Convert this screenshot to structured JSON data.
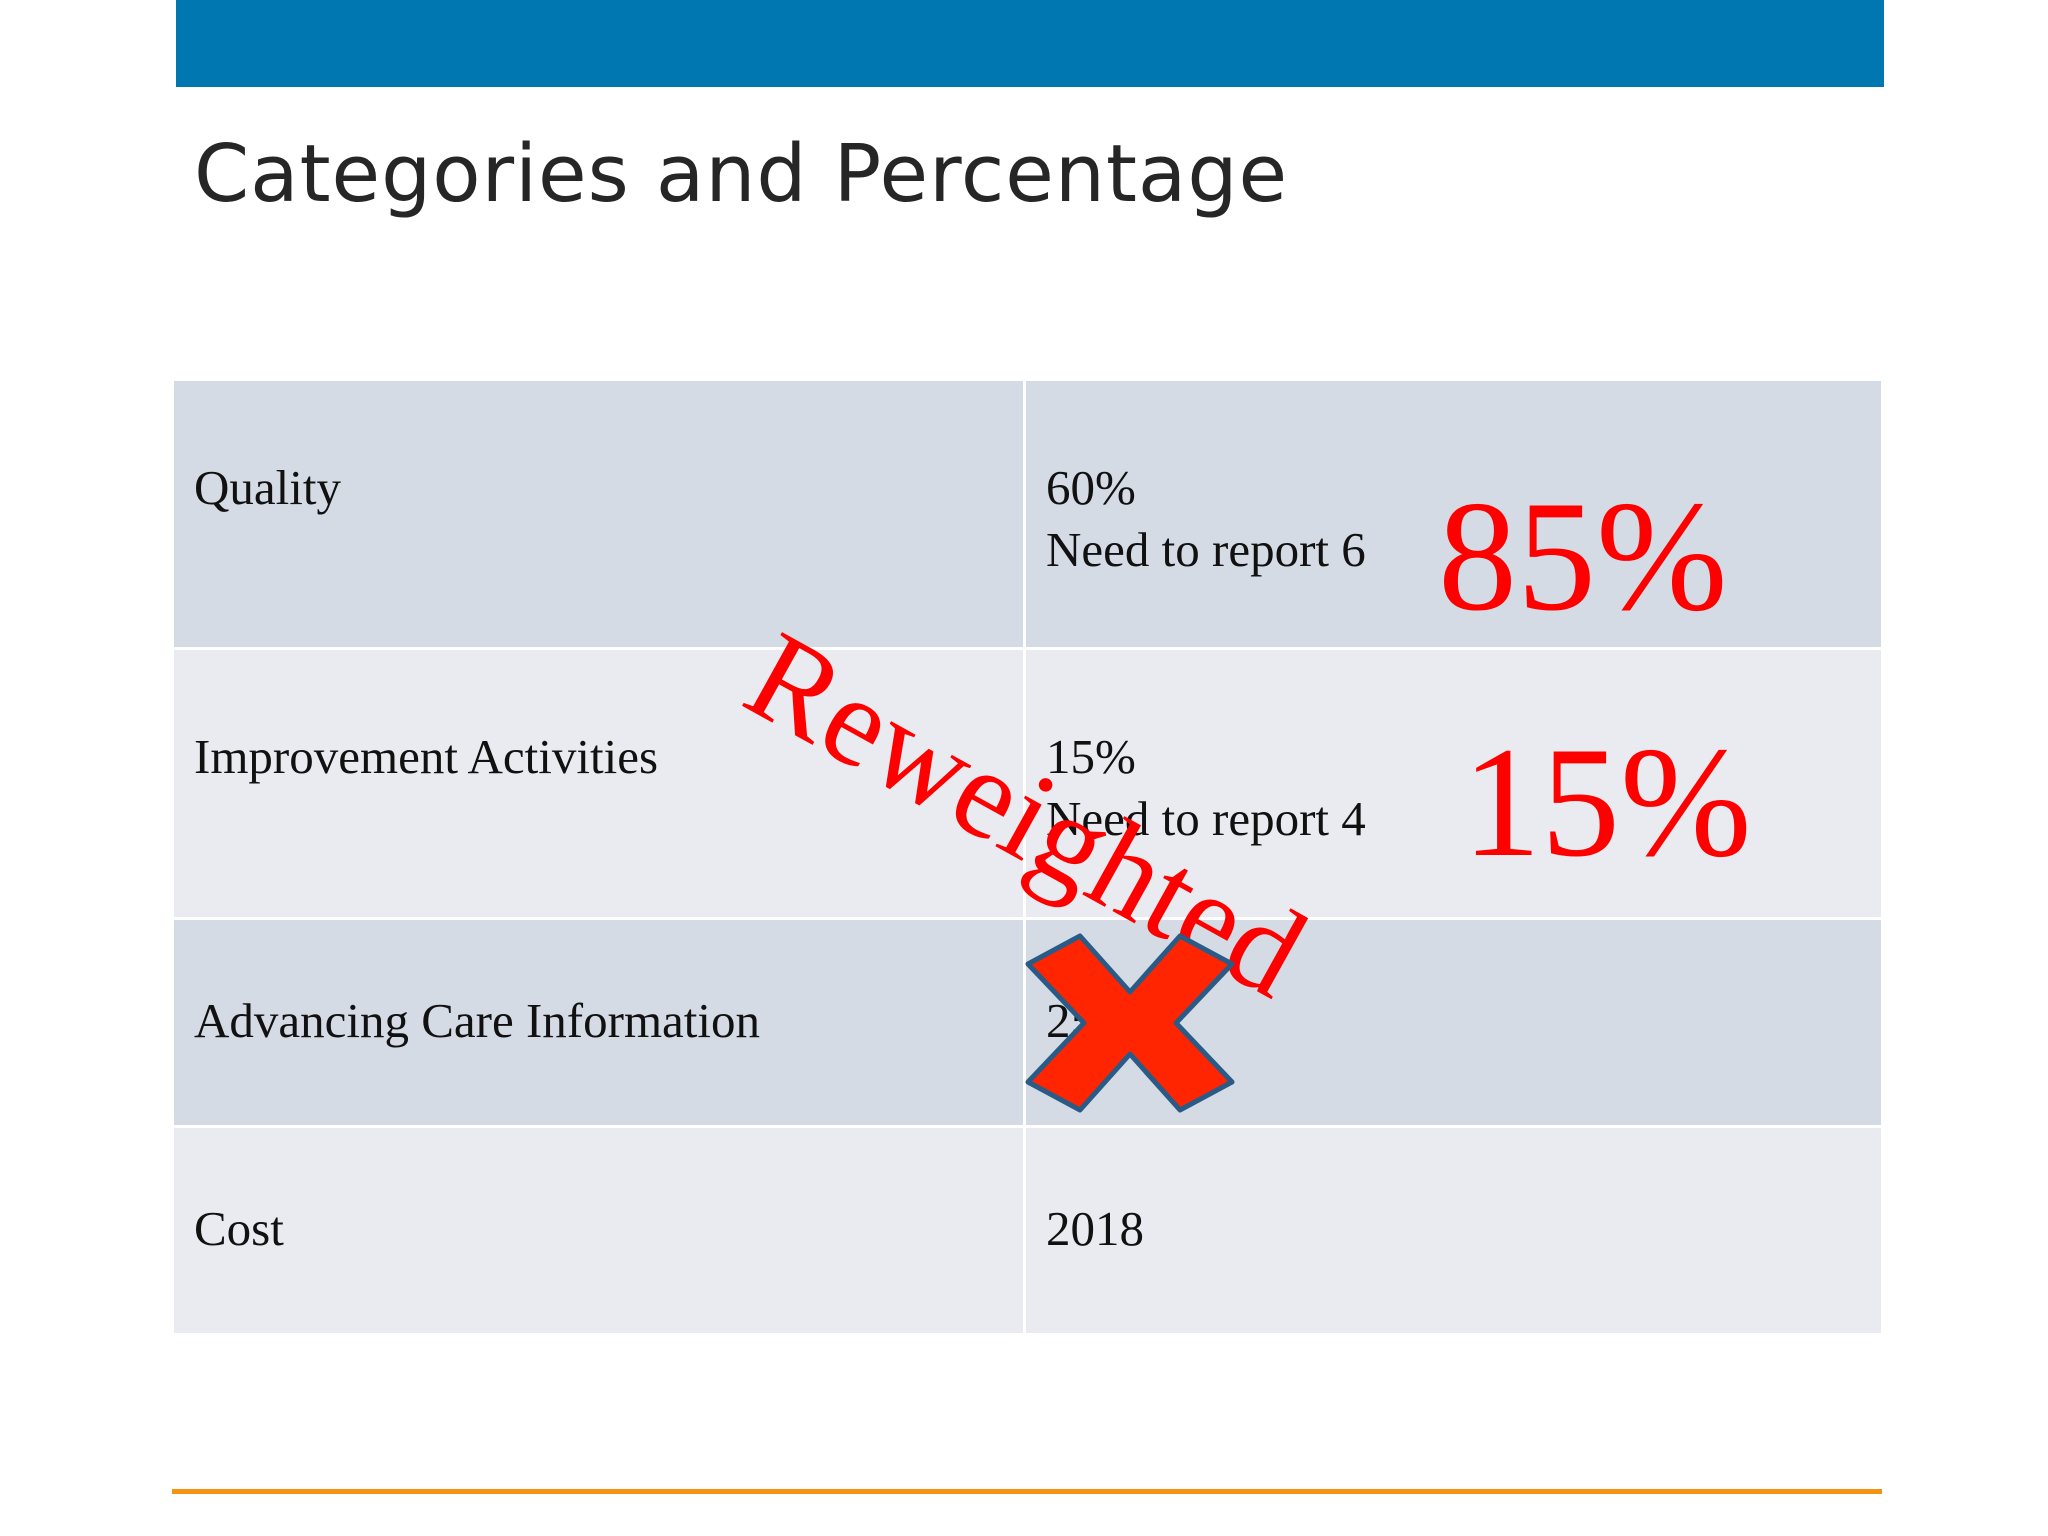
{
  "slide": {
    "title": "Categories and Percentage",
    "colors": {
      "top_bar": "#0077b0",
      "bottom_line": "#f39214",
      "annotation": "#ff0000"
    }
  },
  "table": {
    "rows": [
      {
        "category": "Quality",
        "value_lines": [
          "60%",
          "Need to report 6"
        ]
      },
      {
        "category": "Improvement Activities",
        "value_lines": [
          "15%",
          "Need to report 4"
        ]
      },
      {
        "category": "Advancing Care Information",
        "value_lines": [
          "25%"
        ]
      },
      {
        "category": "Cost",
        "value_lines": [
          "2018"
        ]
      }
    ]
  },
  "annotations": {
    "reweighted_label": "Reweighted",
    "quality_new_pct": "85%",
    "improvement_new_pct": "15%",
    "strike_mark_icon": "x-mark-icon"
  }
}
